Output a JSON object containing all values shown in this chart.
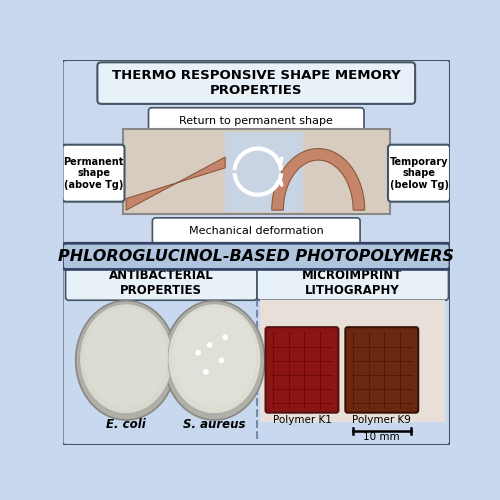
{
  "bg_color": "#c8d8ee",
  "top_section_color": "#ccd8ee",
  "box_fill": "#e8f0f8",
  "white_box": "#ffffff",
  "banner_fill": "#b0c4de",
  "bottom_section_color": "#c8d8ee",
  "black": "#000000",
  "top_box_text": "THERMO RESPONSIVE SHAPE MEMORY\nPROPERTIES",
  "return_label": "Return to permanent shape",
  "deform_label": "Mechanical deformation",
  "perm_label": "Permanent\nshape\n(above Tg)",
  "temp_label": "Temporary\nshape\n(below Tg)",
  "middle_banner_text": "PHLOROGLUCINOL-BASED PHOTOPOLYMERS",
  "antibac_label": "ANTIBACTERIAL\nPROPERTIES",
  "micro_label": "MICROIMPRINT\nLITHOGRAPHY",
  "ecoli_label": "E. coli",
  "saureus_label": "S. aureus",
  "k1_label": "Polymer K1",
  "k9_label": "Polymer K9",
  "scale_label": "10 mm",
  "strip_color": "#c4856a",
  "strip_edge": "#8b5a3a",
  "photo_bg": "#d8ccc0",
  "photo_center_bg": "#c8d4e4",
  "polymer_k1_color": "#8b1515",
  "polymer_k9_color": "#6b2810",
  "polymer_bg": "#e8e0d8",
  "plate_rim": "#b0b0a8",
  "plate_fill1": "#d8d8cc",
  "plate_fill2": "#dcdcd0",
  "edge_color": "#445566",
  "divider_color": "#7788aa"
}
